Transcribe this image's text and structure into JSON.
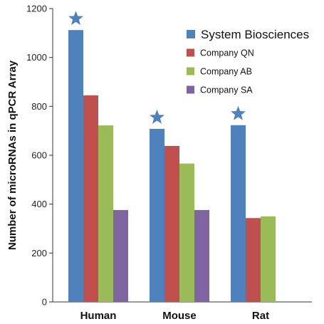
{
  "chart_data": {
    "type": "bar",
    "title": "",
    "xlabel": "",
    "ylabel": "Number of microRNAs in qPCR Array",
    "ylim": [
      0,
      1200
    ],
    "yticks": [
      0,
      200,
      400,
      600,
      800,
      1000,
      1200
    ],
    "grid": false,
    "legend_position": "top-right",
    "categories": [
      "Human",
      "Mouse",
      "Rat"
    ],
    "series": [
      {
        "name": "System Biosciences",
        "color": "#4f81bd",
        "values": [
          1112,
          708,
          723
        ],
        "star_marker": true
      },
      {
        "name": "Company QN",
        "color": "#c0504d",
        "values": [
          845,
          638,
          343
        ]
      },
      {
        "name": "Company AB",
        "color": "#9bbb59",
        "values": [
          722,
          566,
          350
        ]
      },
      {
        "name": "Company SA",
        "color": "#8064a2",
        "values": [
          376,
          376,
          null
        ]
      }
    ]
  }
}
